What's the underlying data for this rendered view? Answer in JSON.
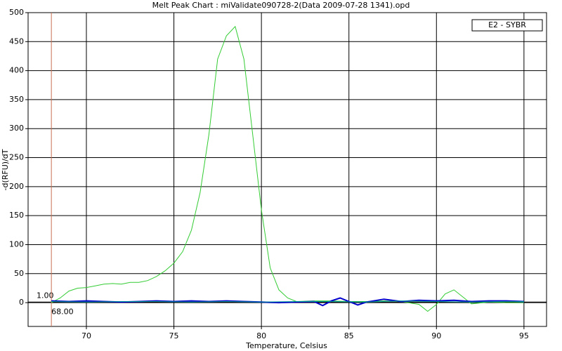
{
  "chart_data": {
    "type": "line",
    "title": "Melt Peak Chart : miValidate090728-2(Data 2009-07-28 1341).opd",
    "x_label": "Temperature, Celsius",
    "y_label": "-d(RFU)/dT",
    "xlim": [
      66.67,
      96.29
    ],
    "ylim": [
      -41,
      500
    ],
    "xticks": [
      70,
      75,
      80,
      85,
      90,
      95
    ],
    "yticks": [
      0,
      50,
      100,
      150,
      200,
      250,
      300,
      350,
      400,
      450,
      500
    ],
    "grid": true,
    "legend": "top-right",
    "threshold": {
      "value": 1,
      "label": "1.00",
      "color": "#000000"
    },
    "marker": {
      "value": 68,
      "label": "68.00",
      "color": "#c87050"
    },
    "series": [
      {
        "name": "E2 - SYBR",
        "color": "#33cc33",
        "x": [
          68,
          68.5,
          69,
          69.5,
          70,
          70.5,
          71,
          71.5,
          72,
          72.5,
          73,
          73.5,
          74,
          74.5,
          75,
          75.5,
          76,
          76.5,
          77,
          77.5,
          78,
          78.5,
          79,
          79.5,
          80,
          80.5,
          81,
          81.5,
          82,
          83,
          84,
          85,
          86,
          87,
          88,
          89,
          89.5,
          90,
          90.5,
          91,
          91.5,
          92,
          93,
          94,
          95
        ],
        "values": [
          0,
          8,
          20,
          25,
          26,
          29,
          32,
          33,
          32,
          35,
          35,
          38,
          45,
          55,
          68,
          88,
          125,
          190,
          290,
          420,
          460,
          476,
          420,
          290,
          160,
          60,
          22,
          8,
          2,
          3,
          3,
          2,
          2,
          3,
          2,
          -3,
          -15,
          -3,
          15,
          22,
          10,
          -2,
          1,
          0,
          0
        ]
      },
      {
        "color": "#0000cc",
        "x": [
          68,
          69,
          70,
          71,
          72,
          73,
          74,
          75,
          76,
          77,
          78,
          79,
          80,
          81,
          82,
          83,
          83.5,
          84,
          84.5,
          85,
          85.5,
          86,
          87,
          88,
          89,
          90,
          91,
          92,
          93,
          94,
          95
        ],
        "values": [
          3,
          2,
          3,
          2,
          1,
          2,
          3,
          2,
          3,
          2,
          3,
          2,
          1,
          0,
          1,
          2,
          -5,
          3,
          8,
          2,
          -4,
          1,
          6,
          2,
          4,
          3,
          4,
          2,
          3,
          3,
          2
        ]
      },
      {
        "color": "#009999",
        "x": [
          68,
          70,
          72,
          74,
          76,
          78,
          80,
          82,
          84,
          86,
          88,
          90,
          92,
          94,
          95
        ],
        "values": [
          2,
          1,
          2,
          2,
          1,
          2,
          1,
          2,
          2,
          1,
          3,
          2,
          1,
          2,
          2
        ]
      }
    ]
  }
}
